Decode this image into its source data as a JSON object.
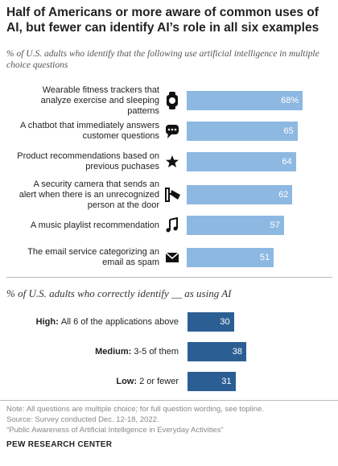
{
  "chart_data": [
    {
      "type": "bar",
      "title": "Half of Americans or more aware of common uses of AI, but fewer can identify AI’s role in all six examples",
      "subtitle": "% of U.S. adults who identify that the following use artificial intelligence in multiple choice questions",
      "categories": [
        "Wearable fitness trackers that analyze exercise and sleeping patterns",
        "A chatbot that immediately answers customer questions",
        "Product recommendations based on previous puchases",
        "A security camera that sends an alert when there is an unrecognized person at the door",
        "A music playlist recommendation",
        "The email service categorizing an email as spam"
      ],
      "values": [
        68,
        65,
        64,
        62,
        57,
        51
      ],
      "value_labels": [
        "68%",
        "65",
        "64",
        "62",
        "57",
        "51"
      ],
      "color": "#8db8e2"
    },
    {
      "type": "bar",
      "subtitle": "% of U.S. adults who correctly identify __ as using AI",
      "groups": [
        "High:",
        "Medium:",
        "Low:"
      ],
      "categories": [
        "All 6 of the applications above",
        "3-5 of them",
        "2 or fewer"
      ],
      "values": [
        30,
        38,
        31
      ],
      "color": "#2b5f94"
    }
  ],
  "notes": [
    "Note: All questions are multiple choice; for full question wording, see topline.",
    "Source: Survey conducted Dec. 12-18, 2022.",
    "“Public Awareness of Artificial Intelligence in Everyday Activities”"
  ],
  "source": "PEW RESEARCH CENTER"
}
